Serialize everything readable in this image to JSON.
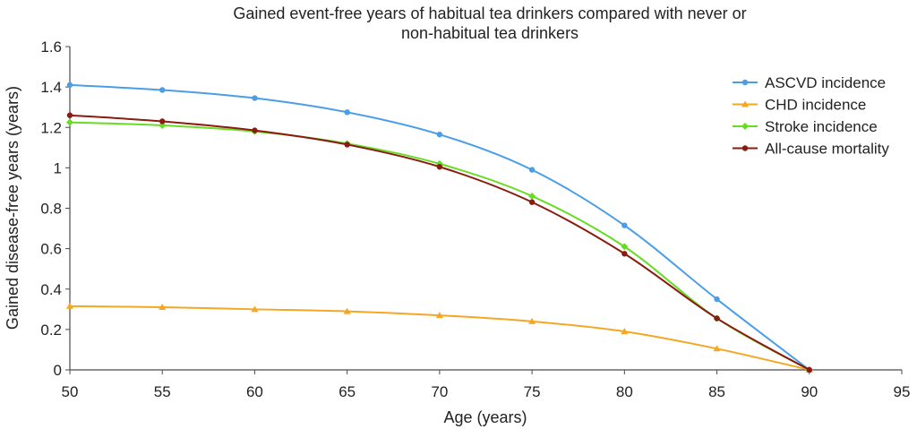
{
  "chart_data": {
    "type": "line",
    "title_lines": [
      "Gained event-free years of habitual tea drinkers compared with never or",
      "non-habitual tea drinkers"
    ],
    "xlabel": "Age (years)",
    "ylabel": "Gained disease-free years (years)",
    "xlim": [
      50,
      95
    ],
    "ylim": [
      0,
      1.6
    ],
    "x_ticks": [
      "50",
      "55",
      "60",
      "65",
      "70",
      "75",
      "80",
      "85",
      "90",
      "95"
    ],
    "y_ticks": [
      "0",
      "0.2",
      "0.4",
      "0.6",
      "0.8",
      "1",
      "1.2",
      "1.4",
      "1.6"
    ],
    "grid": false,
    "legend_position": "right",
    "x": [
      50,
      55,
      60,
      65,
      70,
      75,
      80,
      85,
      90
    ],
    "series": [
      {
        "name": "ASCVD incidence",
        "color": "#4a9ee8",
        "marker": "circle",
        "values": [
          1.41,
          1.385,
          1.345,
          1.275,
          1.165,
          0.99,
          0.715,
          0.35,
          0
        ]
      },
      {
        "name": "CHD incidence",
        "color": "#f5a623",
        "marker": "triangle",
        "values": [
          0.315,
          0.31,
          0.3,
          0.29,
          0.27,
          0.24,
          0.19,
          0.105,
          0
        ]
      },
      {
        "name": "Stroke incidence",
        "color": "#66dd22",
        "marker": "diamond",
        "values": [
          1.225,
          1.21,
          1.18,
          1.12,
          1.02,
          0.86,
          0.61,
          0.255,
          0
        ]
      },
      {
        "name": "All-cause mortality",
        "color": "#8b1a10",
        "marker": "circle",
        "values": [
          1.26,
          1.23,
          1.185,
          1.115,
          1.005,
          0.83,
          0.575,
          0.255,
          0
        ]
      }
    ]
  }
}
